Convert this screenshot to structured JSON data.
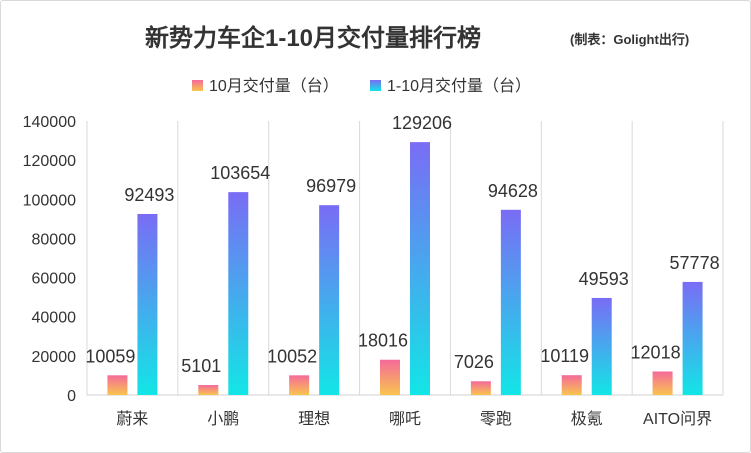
{
  "chart_data": {
    "type": "bar",
    "title": "新势力车企1-10月交付量排行榜",
    "subtitle": "(制表：Golight出行)",
    "categories": [
      "蔚来",
      "小鹏",
      "理想",
      "哪吒",
      "零跑",
      "极氪",
      "AITO问界"
    ],
    "series": [
      {
        "name": "10月交付量（台）",
        "values": [
          10059,
          5101,
          10052,
          18016,
          7026,
          10119,
          12018
        ],
        "color_top": "#F46A9A",
        "color_bottom": "#F9C44E"
      },
      {
        "name": "1-10月交付量（台）",
        "values": [
          92493,
          103654,
          96979,
          129206,
          94628,
          49593,
          57778
        ],
        "color_top": "#7A6CF5",
        "color_bottom": "#12E6E6"
      }
    ],
    "yticks": [
      "0",
      "20000",
      "40000",
      "60000",
      "80000",
      "100000",
      "120000",
      "140000"
    ],
    "ylim": [
      0,
      140000
    ],
    "grid": "vertical category separators",
    "legend_position": "top",
    "data_labels": true
  }
}
